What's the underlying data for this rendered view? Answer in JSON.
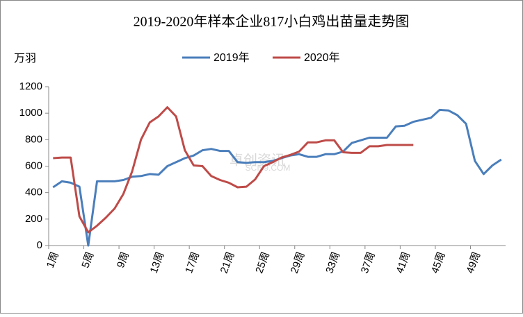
{
  "chart_data": {
    "type": "line",
    "title": "2019-2020年样本企业817小白鸡出苗量走势图",
    "y_label": "万羽",
    "watermark": [
      "卓创资讯",
      "SCI99.COM"
    ],
    "categories": [
      "1周",
      null,
      null,
      null,
      "5周",
      null,
      null,
      null,
      "9周",
      null,
      null,
      null,
      "13周",
      null,
      null,
      null,
      "17周",
      null,
      null,
      null,
      "21周",
      null,
      null,
      null,
      "25周",
      null,
      null,
      null,
      "29周",
      null,
      null,
      null,
      "33周",
      null,
      null,
      null,
      "37周",
      null,
      null,
      null,
      "41周",
      null,
      null,
      null,
      "45周",
      null,
      null,
      null,
      "49周",
      null,
      null,
      null
    ],
    "series": [
      {
        "name": "2019年",
        "color": "#4a7ebb",
        "values": [
          440,
          485,
          475,
          445,
          0,
          485,
          485,
          485,
          495,
          520,
          525,
          540,
          535,
          600,
          630,
          660,
          680,
          720,
          730,
          715,
          715,
          630,
          625,
          630,
          630,
          640,
          660,
          680,
          690,
          670,
          670,
          690,
          690,
          710,
          775,
          795,
          815,
          815,
          815,
          900,
          905,
          935,
          950,
          965,
          1025,
          1020,
          985,
          920,
          640,
          540,
          605,
          650
        ]
      },
      {
        "name": "2020年",
        "color": "#be4b48",
        "values": [
          660,
          665,
          665,
          220,
          100,
          150,
          210,
          280,
          390,
          560,
          800,
          930,
          975,
          1045,
          975,
          720,
          605,
          600,
          525,
          495,
          475,
          440,
          445,
          500,
          600,
          630,
          665,
          685,
          710,
          780,
          780,
          795,
          795,
          705,
          700,
          700,
          750,
          750,
          760,
          760,
          760,
          760,
          null,
          null,
          null,
          null,
          null,
          null,
          null,
          null,
          null,
          null
        ]
      }
    ],
    "ylim": [
      0,
      1200
    ],
    "yticks": [
      0,
      200,
      400,
      600,
      800,
      1000,
      1200
    ],
    "grid": false
  }
}
